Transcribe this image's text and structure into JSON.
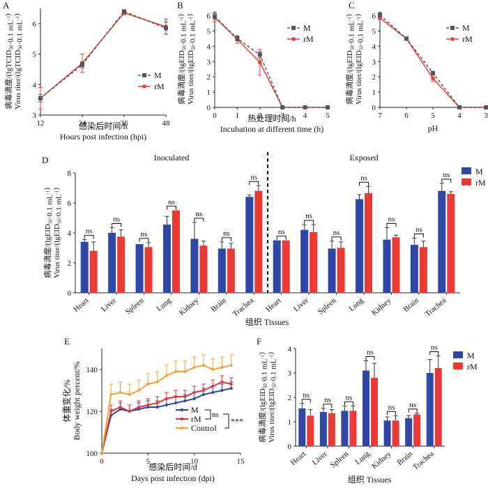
{
  "colors": {
    "M": "#2f48a8",
    "rM": "#ee3a36",
    "Control": "#f5a033",
    "M_line_dark": "#555555"
  },
  "chart_data": [
    {
      "panel": "A",
      "type": "line",
      "x": [
        12,
        24,
        36,
        48
      ],
      "xlim": [
        12,
        48
      ],
      "xticks": [
        12,
        24,
        36,
        48
      ],
      "ylim": [
        3,
        6.5
      ],
      "yticks": [
        3,
        4,
        5,
        6
      ],
      "xlabel_cn": "感染后时间/h",
      "xlabel_en": "Hours post infection (hpi)",
      "ylabel_cn": "病毒滴度/(lgTCID50·0.1 mL-1)",
      "ylabel_en": "Virus titer/(lgTCID50·0.1 mL-1)",
      "legend": "mid-right",
      "series": [
        {
          "name": "M",
          "values": [
            3.55,
            4.65,
            6.4,
            5.85
          ],
          "err": [
            0.12,
            0.1,
            0.05,
            0.2
          ]
        },
        {
          "name": "rM",
          "values": [
            3.55,
            4.7,
            6.35,
            5.9
          ],
          "err": [
            0.35,
            0.3,
            0.06,
            0.25
          ]
        }
      ]
    },
    {
      "panel": "B",
      "type": "line",
      "x": [
        0,
        1,
        2,
        3,
        4,
        5
      ],
      "xlim": [
        0,
        5
      ],
      "xticks": [
        0,
        1,
        2,
        3,
        4,
        5
      ],
      "ylim": [
        0,
        6.3
      ],
      "yticks": [
        0,
        1,
        2,
        3,
        4,
        5,
        6
      ],
      "xlabel_cn": "热处理时间/h",
      "xlabel_en": "Incubation at different time (h)",
      "ylabel_cn": "病毒滴度/(lgEID50·0.1 mL-1)",
      "ylabel_en": "Virus titer/(lgEID50·0.1 mL-1)",
      "legend": "top-right",
      "series": [
        {
          "name": "M",
          "values": [
            5.95,
            4.5,
            3.45,
            0,
            0,
            0
          ],
          "err": [
            0.2,
            0.15,
            0.2,
            0,
            0,
            0
          ]
        },
        {
          "name": "rM",
          "values": [
            5.9,
            4.45,
            2.95,
            0,
            0,
            0
          ],
          "err": [
            0.3,
            0.25,
            0.85,
            0,
            0,
            0
          ]
        }
      ]
    },
    {
      "panel": "C",
      "type": "line",
      "x": [
        7,
        6,
        5,
        4,
        3
      ],
      "xlim": [
        7,
        3
      ],
      "xticks": [
        7,
        6,
        5,
        4,
        3
      ],
      "ylim": [
        0,
        6.3
      ],
      "yticks": [
        0,
        1,
        2,
        3,
        4,
        5,
        6
      ],
      "xlabel_cn": "",
      "xlabel_en": "pH",
      "ylabel_cn": "病毒滴度/(lgEID50·0.1 mL-1)",
      "ylabel_en": "Virus titer/(lgEID50·0.1 mL-1)",
      "legend": "top-right",
      "series": [
        {
          "name": "M",
          "values": [
            6.05,
            4.5,
            2.25,
            0,
            0
          ],
          "err": [
            0.15,
            0.05,
            0.1,
            0,
            0
          ]
        },
        {
          "name": "rM",
          "values": [
            5.85,
            4.5,
            1.9,
            0,
            0
          ],
          "err": [
            0.1,
            0.05,
            0.2,
            0,
            0
          ]
        }
      ]
    },
    {
      "panel": "D",
      "type": "bar",
      "groups": [
        "Inoculated",
        "Exposed"
      ],
      "categories": [
        "Heart",
        "Liver",
        "Spleen",
        "Lung",
        "Kidney",
        "Brain",
        "Trachea",
        "Heart",
        "Liver",
        "Spleen",
        "Lung",
        "Kidney",
        "Brain",
        "Trachea"
      ],
      "ylim": [
        0,
        8
      ],
      "yticks": [
        0,
        2,
        4,
        6,
        8
      ],
      "xlabel": "组织 Tissues",
      "ylabel_cn": "病毒滴度/(lgEID50·0.1 mL-1)",
      "ylabel_en": "Virus titer/(lgEID50·0.1 mL-1)",
      "legend": "top-right",
      "annotation": "ns",
      "series": [
        {
          "name": "M",
          "values": [
            3.4,
            4.0,
            3.25,
            4.55,
            3.6,
            2.95,
            6.4,
            3.5,
            4.2,
            2.95,
            6.25,
            3.55,
            3.2,
            6.8
          ],
          "err": [
            0.15,
            0.35,
            0.0,
            0.55,
            1.1,
            0.45,
            0.12,
            0.0,
            0.35,
            0.5,
            0.3,
            0.8,
            0.45,
            0.5
          ]
        },
        {
          "name": "rM",
          "values": [
            2.8,
            3.75,
            3.05,
            5.5,
            3.15,
            2.95,
            6.8,
            3.5,
            4.05,
            3.0,
            6.65,
            3.7,
            3.05,
            6.6
          ],
          "err": [
            0.6,
            0.45,
            0.3,
            0.0,
            0.3,
            0.35,
            0.35,
            0.0,
            0.5,
            0.4,
            0.45,
            0.15,
            0.4,
            0.15
          ]
        }
      ]
    },
    {
      "panel": "E",
      "type": "line",
      "x": [
        0,
        1,
        2,
        3,
        4,
        5,
        6,
        7,
        8,
        9,
        10,
        11,
        12,
        13,
        14
      ],
      "xlim": [
        0,
        15
      ],
      "xticks": [
        0,
        5,
        10,
        15
      ],
      "ylim": [
        100,
        150
      ],
      "yticks": [
        100,
        120,
        140
      ],
      "xlabel_cn": "感染后时间/d",
      "xlabel_en": "Days post infection (dpi)",
      "ylabel_cn": "体重变化/%",
      "ylabel_en": "Body weight percent/%",
      "legend": "bottom-center",
      "annotations": [
        "ns",
        "***"
      ],
      "series": [
        {
          "name": "M",
          "values": [
            100,
            118,
            121,
            120,
            121,
            122,
            122,
            123,
            124,
            125,
            126,
            128,
            129,
            130,
            131
          ],
          "err": [
            0,
            3,
            3,
            3,
            3,
            3,
            3,
            3,
            3,
            3,
            3,
            3,
            3,
            3,
            3
          ]
        },
        {
          "name": "rM",
          "values": [
            100,
            120,
            122,
            120,
            122,
            123,
            124,
            126,
            127,
            127,
            129,
            130,
            132,
            134,
            133
          ],
          "err": [
            0,
            3,
            3,
            3,
            3,
            3,
            3,
            3,
            3,
            3,
            3,
            3,
            3,
            3,
            3
          ]
        },
        {
          "name": "Control",
          "values": [
            100,
            128,
            129,
            128,
            130,
            133,
            134,
            137,
            139,
            139,
            141,
            142,
            140,
            141,
            142
          ],
          "err": [
            0,
            5,
            5,
            5,
            5,
            5,
            5,
            5,
            5,
            5,
            5,
            5,
            5,
            5,
            5
          ]
        }
      ]
    },
    {
      "panel": "F",
      "type": "bar",
      "categories": [
        "Heart",
        "Liver",
        "Spleen",
        "Lung",
        "Kidney",
        "Brain",
        "Trachea"
      ],
      "ylim": [
        0,
        4
      ],
      "yticks": [
        0,
        1,
        2,
        3,
        4
      ],
      "xlabel": "组织 Tissues",
      "ylabel_cn": "病毒滴度/(lgEID50·0.1 mL-1)",
      "ylabel_en": "Virus titer/(lgEID50·0.1 mL-1)",
      "legend": "top-right",
      "annotation": "ns",
      "series": [
        {
          "name": "M",
          "values": [
            1.55,
            1.4,
            1.45,
            3.1,
            1.05,
            1.15,
            3.0
          ],
          "err": [
            0.2,
            0.15,
            0.2,
            0.4,
            0.15,
            0.1,
            0.55
          ]
        },
        {
          "name": "rM",
          "values": [
            1.25,
            1.35,
            1.45,
            2.8,
            1.05,
            1.3,
            3.2
          ],
          "err": [
            0.25,
            0.15,
            0.2,
            0.6,
            0.2,
            0.05,
            0.5
          ]
        }
      ]
    }
  ]
}
